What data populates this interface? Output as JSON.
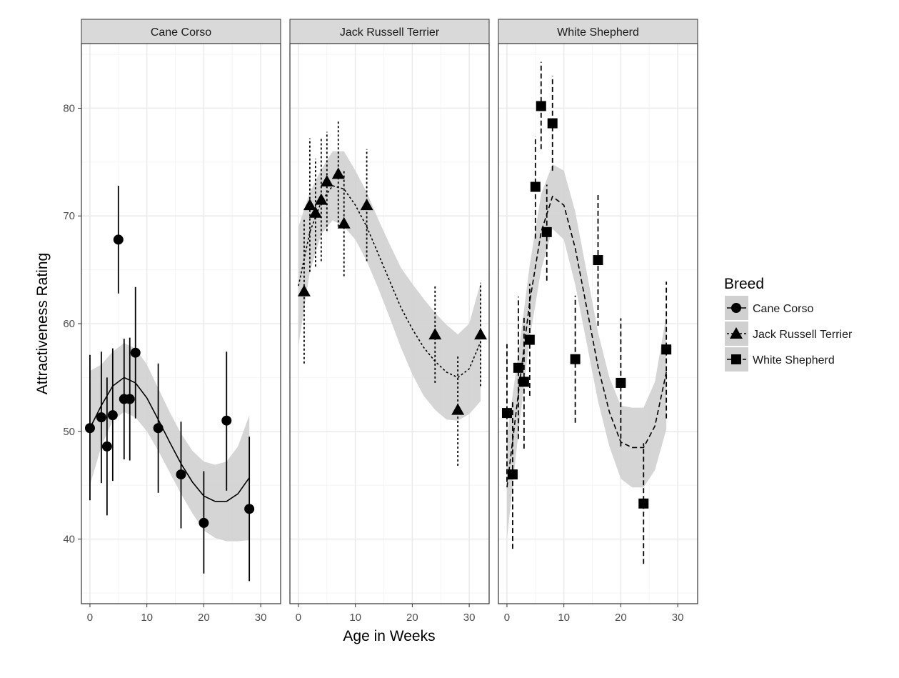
{
  "chart_data": {
    "type": "scatter",
    "xlabel": "Age in Weeks",
    "ylabel": "Attractiveness Rating",
    "xlim": [
      -1.5,
      33.5
    ],
    "ylim": [
      34,
      86
    ],
    "x_ticks": [
      0,
      10,
      20,
      30
    ],
    "y_ticks": [
      40,
      50,
      60,
      70,
      80
    ],
    "x_tick_labels": [
      "0",
      "10",
      "20",
      "30"
    ],
    "y_tick_labels": [
      "40",
      "50",
      "60",
      "70",
      "80"
    ],
    "grid": true,
    "legend": {
      "title": "Breed",
      "position": "right",
      "entries": [
        "Cane Corso",
        "Jack Russell Terrier",
        "White Shepherd"
      ]
    },
    "facets": [
      {
        "name": "Cane Corso",
        "shape": "circle",
        "linetype": "solid",
        "points": [
          {
            "x": 0,
            "y": 50.3,
            "lo": 43.6,
            "hi": 57.1
          },
          {
            "x": 2,
            "y": 51.3,
            "lo": 45.2,
            "hi": 57.4
          },
          {
            "x": 3,
            "y": 48.6,
            "lo": 42.2,
            "hi": 55.0
          },
          {
            "x": 4,
            "y": 51.5,
            "lo": 45.4,
            "hi": 57.7
          },
          {
            "x": 5,
            "y": 67.8,
            "lo": 62.8,
            "hi": 72.8
          },
          {
            "x": 6,
            "y": 53.0,
            "lo": 47.4,
            "hi": 58.6
          },
          {
            "x": 7,
            "y": 53.0,
            "lo": 47.3,
            "hi": 58.7
          },
          {
            "x": 8,
            "y": 57.3,
            "lo": 51.2,
            "hi": 63.4
          },
          {
            "x": 12,
            "y": 50.3,
            "lo": 44.3,
            "hi": 56.3
          },
          {
            "x": 16,
            "y": 46.0,
            "lo": 41.0,
            "hi": 50.9
          },
          {
            "x": 20,
            "y": 41.5,
            "lo": 36.8,
            "hi": 46.3
          },
          {
            "x": 24,
            "y": 51.0,
            "lo": 44.5,
            "hi": 57.4
          },
          {
            "x": 28,
            "y": 42.8,
            "lo": 36.1,
            "hi": 49.5
          }
        ],
        "smooth": [
          {
            "x": 0,
            "y": 50.3,
            "lo": 45.0,
            "hi": 55.6
          },
          {
            "x": 2,
            "y": 52.4,
            "lo": 48.6,
            "hi": 56.2
          },
          {
            "x": 4,
            "y": 54.2,
            "lo": 51.0,
            "hi": 57.4
          },
          {
            "x": 6,
            "y": 55.0,
            "lo": 51.8,
            "hi": 58.2
          },
          {
            "x": 8,
            "y": 54.5,
            "lo": 51.3,
            "hi": 57.7
          },
          {
            "x": 10,
            "y": 53.1,
            "lo": 50.0,
            "hi": 56.2
          },
          {
            "x": 12,
            "y": 51.1,
            "lo": 48.2,
            "hi": 54.0
          },
          {
            "x": 14,
            "y": 49.0,
            "lo": 46.2,
            "hi": 51.8
          },
          {
            "x": 16,
            "y": 47.0,
            "lo": 44.2,
            "hi": 49.8
          },
          {
            "x": 18,
            "y": 45.3,
            "lo": 42.4,
            "hi": 48.2
          },
          {
            "x": 20,
            "y": 44.0,
            "lo": 40.8,
            "hi": 47.2
          },
          {
            "x": 22,
            "y": 43.5,
            "lo": 40.1,
            "hi": 46.9
          },
          {
            "x": 24,
            "y": 43.5,
            "lo": 39.8,
            "hi": 47.2
          },
          {
            "x": 26,
            "y": 44.2,
            "lo": 39.8,
            "hi": 48.6
          },
          {
            "x": 28,
            "y": 45.7,
            "lo": 39.9,
            "hi": 51.5
          }
        ]
      },
      {
        "name": "Jack Russell Terrier",
        "shape": "triangle",
        "linetype": "dotted",
        "points": [
          {
            "x": 1,
            "y": 63.0,
            "lo": 56.3,
            "hi": 69.8
          },
          {
            "x": 2,
            "y": 71.0,
            "lo": 64.8,
            "hi": 77.2
          },
          {
            "x": 3,
            "y": 70.3,
            "lo": 65.3,
            "hi": 75.3
          },
          {
            "x": 4,
            "y": 71.5,
            "lo": 65.8,
            "hi": 77.2
          },
          {
            "x": 5,
            "y": 73.2,
            "lo": 68.6,
            "hi": 77.8
          },
          {
            "x": 7,
            "y": 73.9,
            "lo": 69.0,
            "hi": 78.8
          },
          {
            "x": 8,
            "y": 69.3,
            "lo": 64.4,
            "hi": 74.2
          },
          {
            "x": 12,
            "y": 71.0,
            "lo": 65.8,
            "hi": 76.2
          },
          {
            "x": 24,
            "y": 59.0,
            "lo": 54.5,
            "hi": 63.5
          },
          {
            "x": 28,
            "y": 52.0,
            "lo": 46.8,
            "hi": 57.1
          },
          {
            "x": 32,
            "y": 59.0,
            "lo": 54.2,
            "hi": 63.8
          }
        ],
        "smooth": [
          {
            "x": 0,
            "y": 63.5,
            "lo": 58.0,
            "hi": 69.0
          },
          {
            "x": 2,
            "y": 68.5,
            "lo": 64.8,
            "hi": 72.2
          },
          {
            "x": 4,
            "y": 71.3,
            "lo": 68.3,
            "hi": 74.3
          },
          {
            "x": 6,
            "y": 72.8,
            "lo": 69.6,
            "hi": 76.0
          },
          {
            "x": 8,
            "y": 72.5,
            "lo": 69.0,
            "hi": 76.0
          },
          {
            "x": 10,
            "y": 71.0,
            "lo": 67.8,
            "hi": 74.2
          },
          {
            "x": 12,
            "y": 69.0,
            "lo": 65.8,
            "hi": 72.2
          },
          {
            "x": 14,
            "y": 66.5,
            "lo": 63.3,
            "hi": 69.7
          },
          {
            "x": 16,
            "y": 64.0,
            "lo": 60.6,
            "hi": 67.4
          },
          {
            "x": 18,
            "y": 61.5,
            "lo": 57.8,
            "hi": 65.2
          },
          {
            "x": 20,
            "y": 59.5,
            "lo": 55.3,
            "hi": 63.7
          },
          {
            "x": 22,
            "y": 57.8,
            "lo": 53.3,
            "hi": 62.3
          },
          {
            "x": 24,
            "y": 56.5,
            "lo": 52.0,
            "hi": 61.0
          },
          {
            "x": 26,
            "y": 55.5,
            "lo": 51.1,
            "hi": 59.9
          },
          {
            "x": 28,
            "y": 55.0,
            "lo": 51.0,
            "hi": 59.0
          },
          {
            "x": 30,
            "y": 55.8,
            "lo": 51.6,
            "hi": 60.0
          },
          {
            "x": 32,
            "y": 58.3,
            "lo": 52.8,
            "hi": 63.8
          }
        ]
      },
      {
        "name": "White Shepherd",
        "shape": "square",
        "linetype": "dashed",
        "points": [
          {
            "x": 0,
            "y": 51.7,
            "lo": 45.3,
            "hi": 58.1
          },
          {
            "x": 1,
            "y": 46.0,
            "lo": 39.1,
            "hi": 52.8
          },
          {
            "x": 2,
            "y": 55.9,
            "lo": 49.3,
            "hi": 62.5
          },
          {
            "x": 3,
            "y": 54.6,
            "lo": 48.4,
            "hi": 60.7
          },
          {
            "x": 4,
            "y": 58.5,
            "lo": 53.3,
            "hi": 63.7
          },
          {
            "x": 5,
            "y": 72.7,
            "lo": 67.9,
            "hi": 77.4
          },
          {
            "x": 6,
            "y": 80.2,
            "lo": 76.2,
            "hi": 84.3
          },
          {
            "x": 7,
            "y": 68.5,
            "lo": 64.0,
            "hi": 72.9
          },
          {
            "x": 8,
            "y": 78.6,
            "lo": 74.2,
            "hi": 83.0
          },
          {
            "x": 12,
            "y": 56.7,
            "lo": 50.8,
            "hi": 62.6
          },
          {
            "x": 16,
            "y": 65.9,
            "lo": 59.8,
            "hi": 72.0
          },
          {
            "x": 20,
            "y": 54.5,
            "lo": 48.6,
            "hi": 60.5
          },
          {
            "x": 24,
            "y": 43.3,
            "lo": 37.7,
            "hi": 48.9
          },
          {
            "x": 28,
            "y": 57.6,
            "lo": 51.2,
            "hi": 63.9
          }
        ],
        "smooth": [
          {
            "x": 0,
            "y": 44.8,
            "lo": 40.0,
            "hi": 49.6
          },
          {
            "x": 2,
            "y": 53.5,
            "lo": 49.8,
            "hi": 57.2
          },
          {
            "x": 4,
            "y": 62.0,
            "lo": 58.6,
            "hi": 65.4
          },
          {
            "x": 6,
            "y": 68.5,
            "lo": 65.0,
            "hi": 72.0
          },
          {
            "x": 8,
            "y": 71.8,
            "lo": 68.8,
            "hi": 74.8
          },
          {
            "x": 10,
            "y": 71.0,
            "lo": 67.8,
            "hi": 74.2
          },
          {
            "x": 12,
            "y": 67.0,
            "lo": 63.6,
            "hi": 70.4
          },
          {
            "x": 14,
            "y": 61.5,
            "lo": 58.2,
            "hi": 64.8
          },
          {
            "x": 16,
            "y": 56.0,
            "lo": 52.8,
            "hi": 59.2
          },
          {
            "x": 18,
            "y": 51.8,
            "lo": 48.6,
            "hi": 55.0
          },
          {
            "x": 20,
            "y": 49.0,
            "lo": 45.6,
            "hi": 52.4
          },
          {
            "x": 22,
            "y": 48.5,
            "lo": 44.8,
            "hi": 52.2
          },
          {
            "x": 24,
            "y": 48.5,
            "lo": 44.8,
            "hi": 52.2
          },
          {
            "x": 26,
            "y": 50.5,
            "lo": 46.4,
            "hi": 54.6
          },
          {
            "x": 28,
            "y": 55.5,
            "lo": 50.2,
            "hi": 60.8
          }
        ]
      }
    ]
  },
  "colors": {
    "background": "#ffffff",
    "panel_border": "#333333",
    "strip_fill": "#d9d9d9",
    "grid_major": "#ebebeb",
    "grid_minor": "#f5f5f5",
    "ribbon": "#d0d0d0",
    "ink": "#000000",
    "tick_text": "#4d4d4d"
  }
}
